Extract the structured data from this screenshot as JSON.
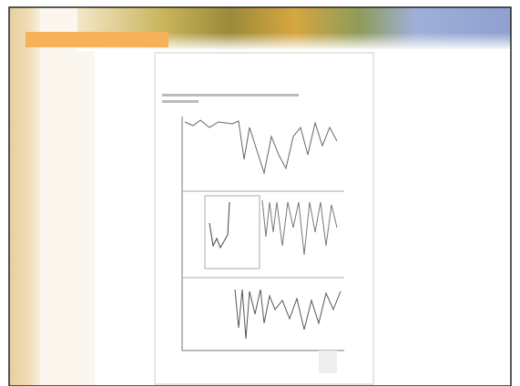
{
  "slide": {}
}
